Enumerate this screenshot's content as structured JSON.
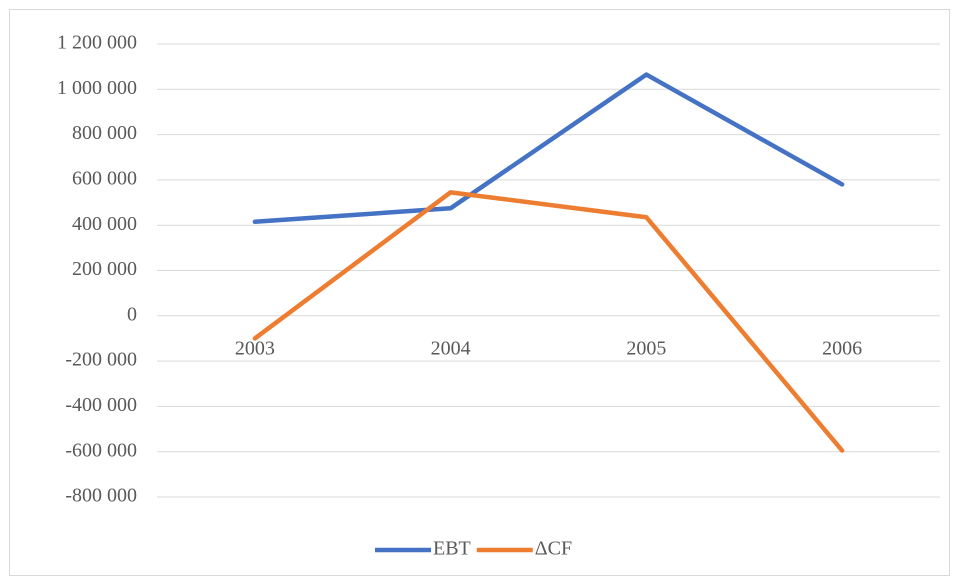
{
  "chart_data": {
    "type": "line",
    "categories": [
      "2003",
      "2004",
      "2005",
      "2006"
    ],
    "series": [
      {
        "name": "EBT",
        "color": "#4472c4",
        "values": [
          415000,
          475000,
          1065000,
          580000
        ]
      },
      {
        "name": "ΔCF",
        "color": "#ed7d31",
        "values": [
          -100000,
          545000,
          435000,
          -595000
        ]
      }
    ],
    "ylim": [
      -800000,
      1200000
    ],
    "yticks": [
      {
        "value": -800000,
        "label": "-800 000"
      },
      {
        "value": -600000,
        "label": "-600 000"
      },
      {
        "value": -400000,
        "label": "-400 000"
      },
      {
        "value": -200000,
        "label": "-200 000"
      },
      0,
      {
        "value": 200000,
        "label": "200 000"
      },
      {
        "value": 400000,
        "label": "400 000"
      },
      {
        "value": 600000,
        "label": "600 000"
      },
      {
        "value": 800000,
        "label": "800 000"
      },
      {
        "value": 1000000,
        "label": "1 000 000"
      },
      {
        "value": 1200000,
        "label": "1 200 000"
      }
    ],
    "grid": true,
    "legend": "bottom"
  }
}
